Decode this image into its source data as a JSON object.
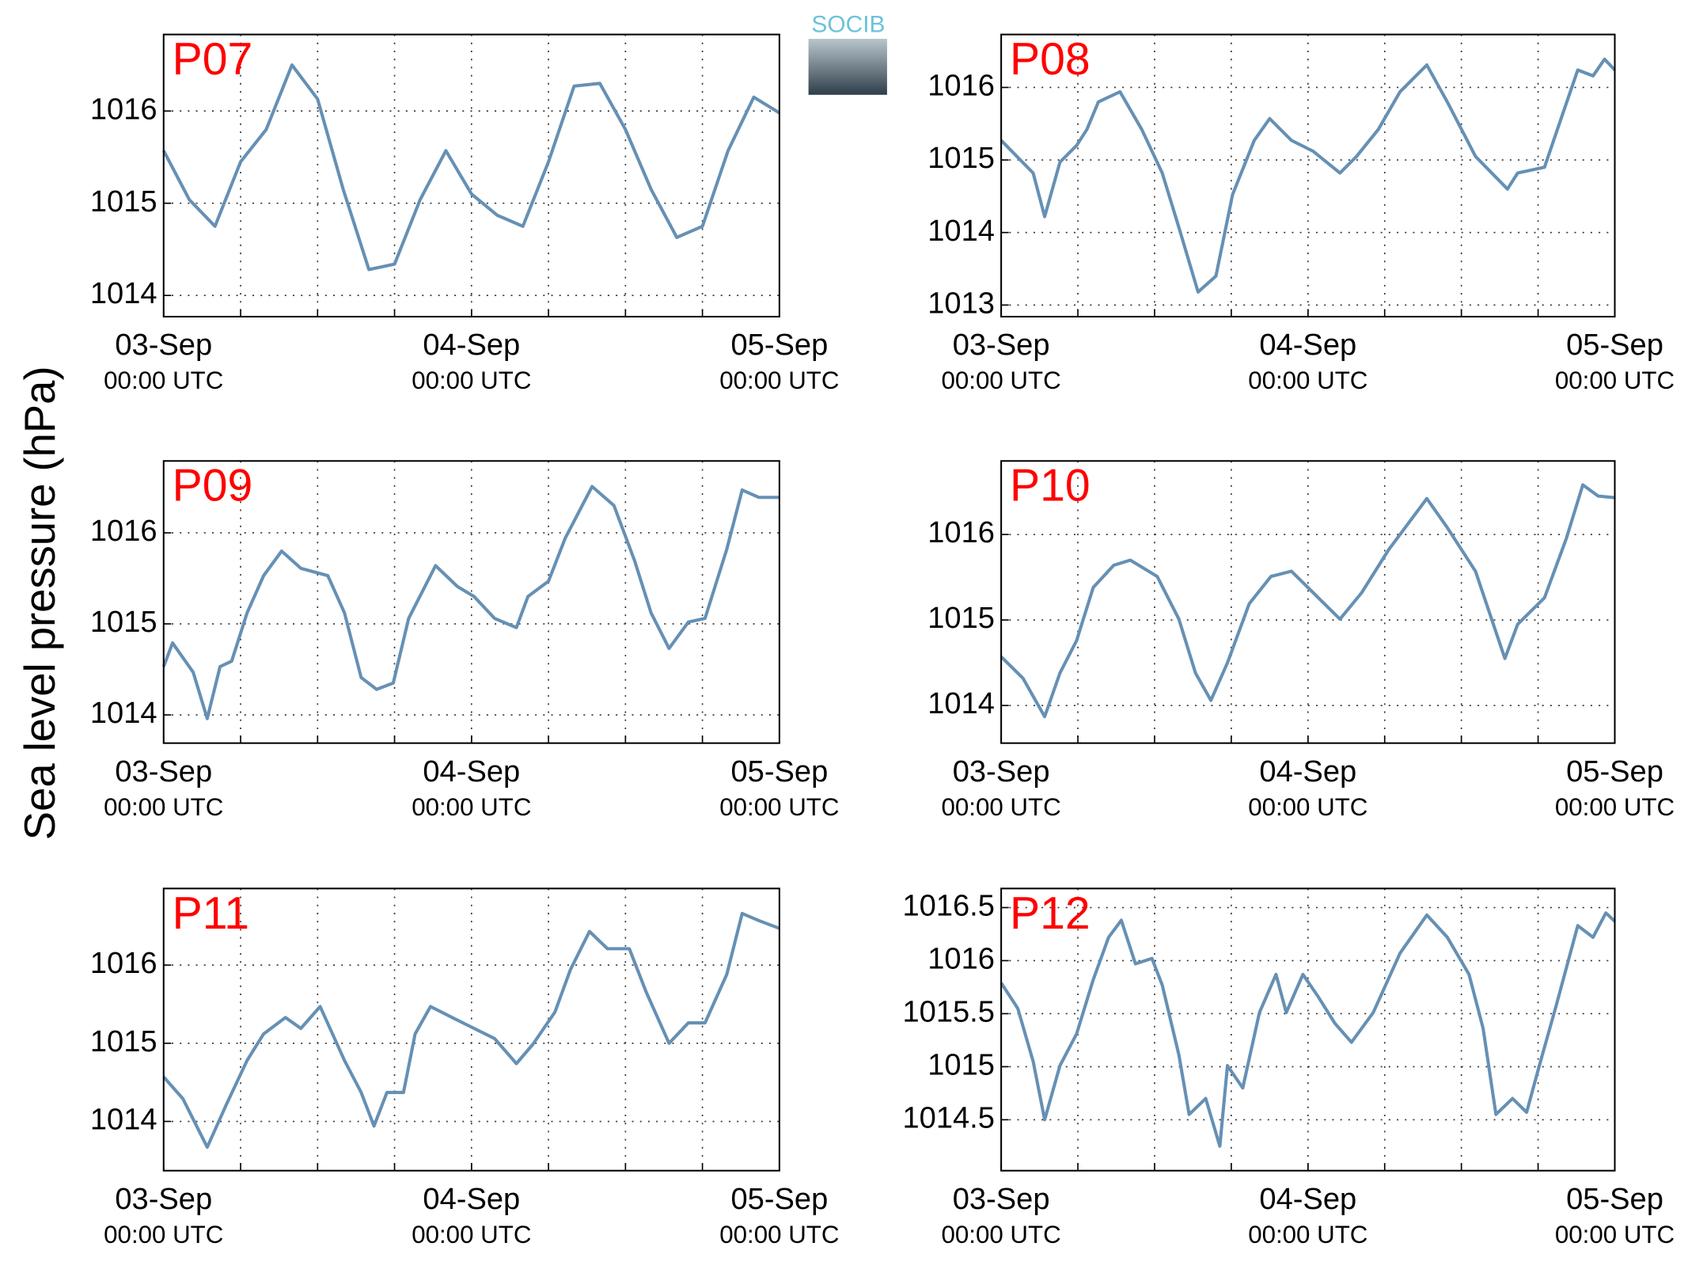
{
  "y_label": "Sea level pressure (hPa)",
  "logo": "SOCIB",
  "chart_data": [
    {
      "type": "line",
      "title": "P07",
      "color": "#6690b4",
      "grid": true,
      "xlim": [
        0,
        48
      ],
      "ylim": [
        1013.77,
        1016.83
      ],
      "xticks": [
        {
          "value": 0,
          "label": "03-Sep",
          "sublabel": "00:00 UTC"
        },
        {
          "value": 24,
          "label": "04-Sep",
          "sublabel": "00:00 UTC"
        },
        {
          "value": 48,
          "label": "05-Sep",
          "sublabel": "00:00 UTC"
        }
      ],
      "xgrid": [
        6,
        12,
        18,
        24,
        30,
        36,
        42
      ],
      "yticks": [
        1014,
        1015,
        1016
      ],
      "x": [
        0,
        2,
        4,
        6,
        8,
        10,
        12,
        14,
        16,
        18,
        20,
        22,
        24,
        26,
        28,
        30,
        32,
        34,
        36,
        38,
        40,
        42,
        44,
        46,
        48
      ],
      "values": [
        1015.57,
        1015.04,
        1014.75,
        1015.45,
        1015.8,
        1016.5,
        1016.13,
        1015.15,
        1014.28,
        1014.34,
        1015.04,
        1015.57,
        1015.1,
        1014.87,
        1014.75,
        1015.45,
        1016.27,
        1016.3,
        1015.8,
        1015.15,
        1014.63,
        1014.75,
        1015.57,
        1016.15,
        1015.98
      ]
    },
    {
      "type": "line",
      "title": "P08",
      "color": "#6690b4",
      "grid": true,
      "xlim": [
        0,
        48
      ],
      "ylim": [
        1012.84,
        1016.73
      ],
      "xticks": [
        {
          "value": 0,
          "label": "03-Sep",
          "sublabel": "00:00 UTC"
        },
        {
          "value": 24,
          "label": "04-Sep",
          "sublabel": "00:00 UTC"
        },
        {
          "value": 48,
          "label": "05-Sep",
          "sublabel": "00:00 UTC"
        }
      ],
      "xgrid": [
        6,
        12,
        18,
        24,
        30,
        36,
        42
      ],
      "yticks": [
        1013,
        1014,
        1015,
        1016
      ],
      "x": [
        0,
        2.5,
        3.4,
        4.6,
        5.9,
        6.7,
        7.6,
        9.3,
        11,
        12.6,
        13.9,
        15.4,
        16.8,
        18.1,
        19.8,
        21,
        22.7,
        24.4,
        26.5,
        27.8,
        29.5,
        31.2,
        33.3,
        34.9,
        37.1,
        39.6,
        40.4,
        42.5,
        43.8,
        45.1,
        46.3,
        47.2,
        48
      ],
      "values": [
        1015.27,
        1014.82,
        1014.22,
        1014.97,
        1015.2,
        1015.42,
        1015.8,
        1015.94,
        1015.42,
        1014.82,
        1014.07,
        1013.18,
        1013.4,
        1014.52,
        1015.27,
        1015.57,
        1015.27,
        1015.12,
        1014.82,
        1015.05,
        1015.42,
        1015.94,
        1016.31,
        1015.8,
        1015.05,
        1014.6,
        1014.82,
        1014.9,
        1015.57,
        1016.24,
        1016.16,
        1016.39,
        1016.24
      ]
    },
    {
      "type": "line",
      "title": "P09",
      "color": "#6690b4",
      "grid": true,
      "xlim": [
        0,
        48
      ],
      "ylim": [
        1013.69,
        1016.79
      ],
      "xticks": [
        {
          "value": 0,
          "label": "03-Sep",
          "sublabel": "00:00 UTC"
        },
        {
          "value": 24,
          "label": "04-Sep",
          "sublabel": "00:00 UTC"
        },
        {
          "value": 48,
          "label": "05-Sep",
          "sublabel": "00:00 UTC"
        }
      ],
      "xgrid": [
        6,
        12,
        18,
        24,
        30,
        36,
        42
      ],
      "yticks": [
        1014,
        1015,
        1016
      ],
      "x": [
        0,
        0.7,
        2.3,
        3.4,
        4.4,
        5.3,
        6.5,
        7.8,
        9.2,
        10.7,
        12.8,
        14.1,
        15.4,
        16.6,
        17.9,
        19.1,
        21.2,
        22.9,
        24.2,
        25.8,
        27.5,
        28.4,
        30,
        31.3,
        33.4,
        35.1,
        36.7,
        38,
        39.4,
        40.9,
        42.2,
        43.9,
        45.1,
        46.4,
        48
      ],
      "values": [
        1014.53,
        1014.79,
        1014.47,
        1013.96,
        1014.53,
        1014.59,
        1015.12,
        1015.53,
        1015.8,
        1015.61,
        1015.53,
        1015.12,
        1014.41,
        1014.28,
        1014.35,
        1015.06,
        1015.64,
        1015.41,
        1015.3,
        1015.06,
        1014.96,
        1015.3,
        1015.47,
        1015.94,
        1016.51,
        1016.3,
        1015.7,
        1015.12,
        1014.73,
        1015.02,
        1015.06,
        1015.82,
        1016.47,
        1016.39,
        1016.39
      ]
    },
    {
      "type": "line",
      "title": "P10",
      "color": "#6690b4",
      "grid": true,
      "xlim": [
        0,
        48
      ],
      "ylim": [
        1013.56,
        1016.86
      ],
      "xticks": [
        {
          "value": 0,
          "label": "03-Sep",
          "sublabel": "00:00 UTC"
        },
        {
          "value": 24,
          "label": "04-Sep",
          "sublabel": "00:00 UTC"
        },
        {
          "value": 48,
          "label": "05-Sep",
          "sublabel": "00:00 UTC"
        }
      ],
      "xgrid": [
        6,
        12,
        18,
        24,
        30,
        36,
        42
      ],
      "yticks": [
        1014,
        1015,
        1016
      ],
      "x": [
        0,
        1.7,
        3.4,
        4.6,
        5.9,
        7.2,
        8.8,
        10.1,
        12.2,
        13.9,
        15.2,
        16.4,
        17.7,
        19.4,
        21.1,
        22.7,
        24.4,
        26.5,
        28.2,
        30.3,
        33.3,
        34.9,
        37.1,
        39.4,
        40.4,
        42.5,
        44.2,
        45.5,
        46.7,
        48
      ],
      "values": [
        1014.57,
        1014.32,
        1013.87,
        1014.38,
        1014.76,
        1015.38,
        1015.64,
        1015.7,
        1015.51,
        1015.01,
        1014.38,
        1014.06,
        1014.5,
        1015.19,
        1015.51,
        1015.57,
        1015.32,
        1015.01,
        1015.32,
        1015.82,
        1016.42,
        1016.08,
        1015.57,
        1014.55,
        1014.95,
        1015.26,
        1015.95,
        1016.58,
        1016.45,
        1016.43
      ]
    },
    {
      "type": "line",
      "title": "P11",
      "color": "#6690b4",
      "grid": true,
      "xlim": [
        0,
        48
      ],
      "ylim": [
        1013.37,
        1016.98
      ],
      "xticks": [
        {
          "value": 0,
          "label": "03-Sep",
          "sublabel": "00:00 UTC"
        },
        {
          "value": 24,
          "label": "04-Sep",
          "sublabel": "00:00 UTC"
        },
        {
          "value": 48,
          "label": "05-Sep",
          "sublabel": "00:00 UTC"
        }
      ],
      "xgrid": [
        6,
        12,
        18,
        24,
        30,
        36,
        42
      ],
      "yticks": [
        1014,
        1015,
        1016
      ],
      "x": [
        0,
        1.5,
        3.4,
        4.9,
        6.5,
        7.8,
        9.5,
        10.7,
        12.2,
        14.1,
        15.4,
        16.4,
        17.4,
        18.7,
        19.6,
        20.8,
        22.5,
        24.2,
        25.8,
        27.5,
        28.8,
        30.5,
        31.7,
        33.2,
        34.6,
        36.3,
        37.6,
        39.4,
        40.9,
        42.2,
        43.9,
        45.1,
        46.4,
        48
      ],
      "values": [
        1014.57,
        1014.29,
        1013.67,
        1014.22,
        1014.78,
        1015.12,
        1015.33,
        1015.19,
        1015.47,
        1014.78,
        1014.37,
        1013.94,
        1014.37,
        1014.37,
        1015.12,
        1015.47,
        1015.33,
        1015.19,
        1015.06,
        1014.74,
        1014.99,
        1015.4,
        1015.94,
        1016.43,
        1016.21,
        1016.21,
        1015.66,
        1015.0,
        1015.26,
        1015.26,
        1015.88,
        1016.66,
        1016.57,
        1016.47
      ]
    },
    {
      "type": "line",
      "title": "P12",
      "color": "#6690b4",
      "grid": true,
      "xlim": [
        0,
        48
      ],
      "ylim": [
        1014.02,
        1016.68
      ],
      "xticks": [
        {
          "value": 0,
          "label": "03-Sep",
          "sublabel": "00:00 UTC"
        },
        {
          "value": 24,
          "label": "04-Sep",
          "sublabel": "00:00 UTC"
        },
        {
          "value": 48,
          "label": "05-Sep",
          "sublabel": "00:00 UTC"
        }
      ],
      "xgrid": [
        6,
        12,
        18,
        24,
        30,
        36,
        42
      ],
      "yticks": [
        1014.5,
        1015,
        1015.5,
        1016,
        1016.5
      ],
      "x": [
        0,
        1.3,
        2.5,
        3.4,
        4.6,
        5.9,
        7.2,
        8.4,
        9.4,
        10.5,
        11.8,
        12.6,
        13.9,
        14.7,
        16,
        17.1,
        17.7,
        18.9,
        20.2,
        21.5,
        22.3,
        23.6,
        24.8,
        26.1,
        27.4,
        29.1,
        31.2,
        33.3,
        34.9,
        36.6,
        37.7,
        38.7,
        40,
        41.1,
        42.1,
        43.4,
        45.1,
        46.3,
        47.3,
        48
      ],
      "values": [
        1015.79,
        1015.55,
        1015.05,
        1014.5,
        1015.01,
        1015.31,
        1015.82,
        1016.22,
        1016.38,
        1015.97,
        1016.02,
        1015.77,
        1015.11,
        1014.55,
        1014.7,
        1014.25,
        1015.01,
        1014.8,
        1015.51,
        1015.87,
        1015.51,
        1015.87,
        1015.66,
        1015.41,
        1015.23,
        1015.51,
        1016.07,
        1016.43,
        1016.22,
        1015.87,
        1015.36,
        1014.55,
        1014.7,
        1014.57,
        1015.01,
        1015.57,
        1016.33,
        1016.22,
        1016.45,
        1016.37
      ]
    }
  ]
}
